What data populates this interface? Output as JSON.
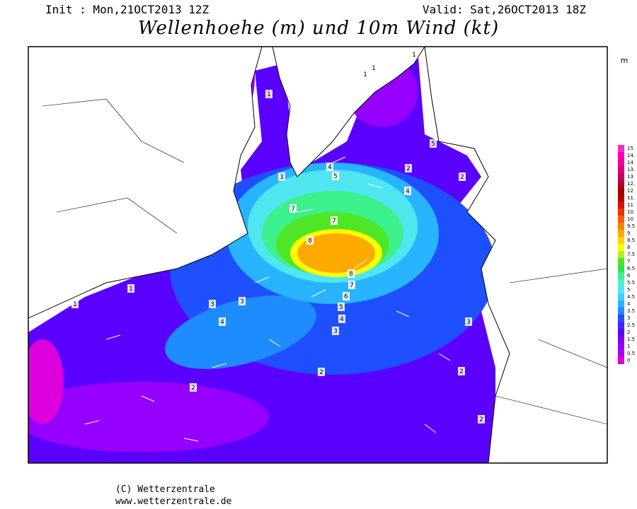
{
  "header": {
    "init": "Init : Mon,21OCT2013 12Z",
    "valid": "Valid: Sat,26OCT2013 18Z",
    "title": "Wellenhoehe (m) und 10m Wind (kt)"
  },
  "legend": {
    "unit": "m",
    "items": [
      {
        "label": "15",
        "color": "#ff28c8"
      },
      {
        "label": "14.",
        "color": "#ff00b4"
      },
      {
        "label": "14",
        "color": "#f00096"
      },
      {
        "label": "13.",
        "color": "#dc0078"
      },
      {
        "label": "13",
        "color": "#c8005a"
      },
      {
        "label": "12.",
        "color": "#b4003c"
      },
      {
        "label": "12",
        "color": "#a00000"
      },
      {
        "label": "11.",
        "color": "#b40000"
      },
      {
        "label": "11",
        "color": "#d21400"
      },
      {
        "label": "10.",
        "color": "#f03200"
      },
      {
        "label": "10",
        "color": "#ff5a00"
      },
      {
        "label": "9.5",
        "color": "#ff8200"
      },
      {
        "label": "9",
        "color": "#ffaa00"
      },
      {
        "label": "8.5",
        "color": "#ffd200"
      },
      {
        "label": "8",
        "color": "#ffff00"
      },
      {
        "label": "7.5",
        "color": "#b4f028"
      },
      {
        "label": "7",
        "color": "#50e628"
      },
      {
        "label": "6.5",
        "color": "#28e650"
      },
      {
        "label": "6",
        "color": "#3cf08c"
      },
      {
        "label": "5.5",
        "color": "#50f0c8"
      },
      {
        "label": "5",
        "color": "#50e6f0"
      },
      {
        "label": "4.5",
        "color": "#3cd2ff"
      },
      {
        "label": "4",
        "color": "#28b4ff"
      },
      {
        "label": "3.5",
        "color": "#1e8cff"
      },
      {
        "label": "3",
        "color": "#1e50ff"
      },
      {
        "label": "2.5",
        "color": "#3c28ff"
      },
      {
        "label": "2",
        "color": "#5a00ff"
      },
      {
        "label": "1.5",
        "color": "#7800ff"
      },
      {
        "label": "1",
        "color": "#9600ff"
      },
      {
        "label": "0.5",
        "color": "#b400e6"
      },
      {
        "label": "0",
        "color": "#dd00dd"
      }
    ]
  },
  "contour_labels": [
    "1",
    "1",
    "1",
    "1",
    "2",
    "3",
    "4",
    "5",
    "5",
    "4",
    "7",
    "7",
    "8",
    "8",
    "7",
    "6",
    "5",
    "4",
    "3",
    "3",
    "4",
    "3",
    "2",
    "2",
    "2",
    "3",
    "2",
    "2",
    "1",
    "1"
  ],
  "footer": {
    "copyright": "(C) Wetterzentrale",
    "url": "www.wetterzentrale.de"
  }
}
